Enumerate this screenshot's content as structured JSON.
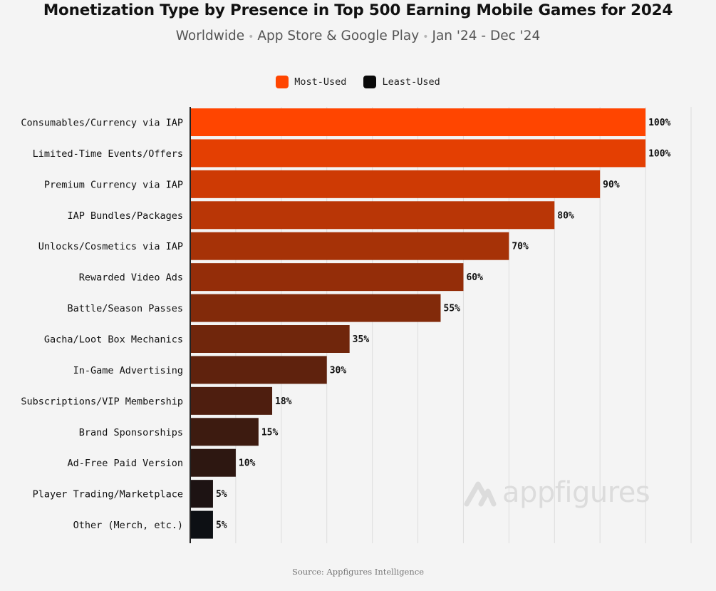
{
  "title": "Monetization Type by Presence in Top 500 Earning Mobile Games for 2024",
  "subtitle": {
    "region": "Worldwide",
    "stores": "App Store & Google Play",
    "period": "Jan '24 - Dec '24",
    "separator": "•"
  },
  "legend": [
    {
      "label": "Most-Used",
      "color": "#ff4500"
    },
    {
      "label": "Least-Used",
      "color": "#0a0a0a"
    }
  ],
  "watermark": "appfigures",
  "source": "Source: Appfigures Intelligence",
  "colors": {
    "bar_start": "#ff4500",
    "bar_end": "#0d1014",
    "axis": "#222222",
    "grid": "#dddddd"
  },
  "chart_data": {
    "type": "bar",
    "orientation": "horizontal",
    "title": "Monetization Type by Presence in Top 500 Earning Mobile Games for 2024",
    "xlabel": "",
    "ylabel": "",
    "xlim": [
      0,
      110
    ],
    "grid": true,
    "legend_position": "top-center",
    "value_suffix": "%",
    "categories": [
      "Consumables/Currency via IAP",
      "Limited-Time Events/Offers",
      "Premium Currency via IAP",
      "IAP Bundles/Packages",
      "Unlocks/Cosmetics via IAP",
      "Rewarded Video Ads",
      "Battle/Season Passes",
      "Gacha/Loot Box Mechanics",
      "In-Game Advertising",
      "Subscriptions/VIP Membership",
      "Brand Sponsorships",
      "Ad-Free Paid Version",
      "Player Trading/Marketplace",
      "Other (Merch, etc.)"
    ],
    "values": [
      100,
      100,
      90,
      80,
      70,
      60,
      55,
      35,
      30,
      18,
      15,
      10,
      5,
      5
    ],
    "labels": [
      "100%",
      "100%",
      "90%",
      "80%",
      "70%",
      "60%",
      "55%",
      "35%",
      "30%",
      "18%",
      "15%",
      "10%",
      "5%",
      "5%"
    ]
  }
}
